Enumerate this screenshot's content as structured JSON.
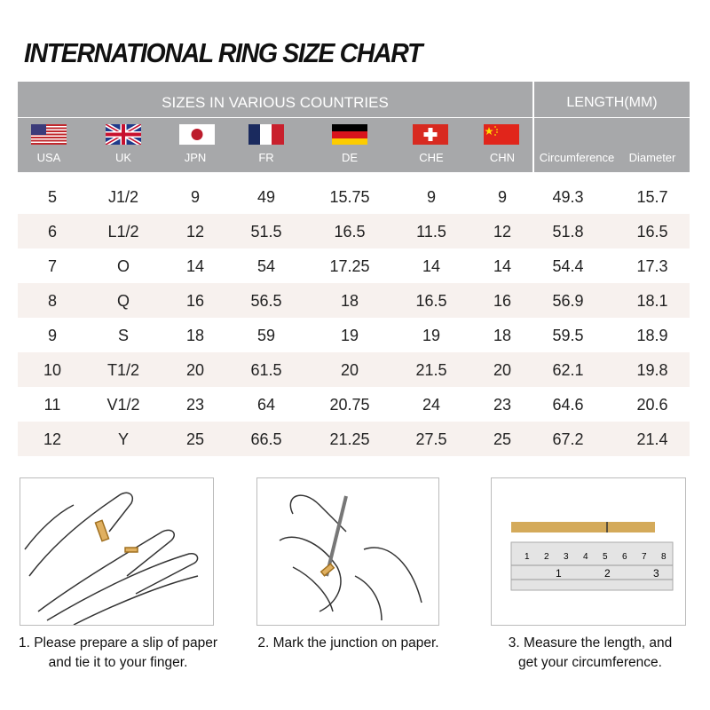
{
  "title": "INTERNATIONAL RING SIZE CHART",
  "header": {
    "sizes_label": "SIZES IN VARIOUS COUNTRIES",
    "length_label": "LENGTH(MM)",
    "countries": [
      {
        "code": "USA",
        "flag": "us-flag"
      },
      {
        "code": "UK",
        "flag": "uk-flag"
      },
      {
        "code": "JPN",
        "flag": "japan-flag"
      },
      {
        "code": "FR",
        "flag": "france-flag"
      },
      {
        "code": "DE",
        "flag": "germany-flag"
      },
      {
        "code": "CHE",
        "flag": "switzerland-flag"
      },
      {
        "code": "CHN",
        "flag": "china-flag"
      }
    ],
    "length_cols": [
      "Circumference",
      "Diameter"
    ]
  },
  "colors": {
    "header_bg": "#a7a8aa",
    "alt_row": "#f7f1ee"
  },
  "rows": [
    [
      "5",
      "J1/2",
      "9",
      "49",
      "15.75",
      "9",
      "9",
      "49.3",
      "15.7"
    ],
    [
      "6",
      "L1/2",
      "12",
      "51.5",
      "16.5",
      "11.5",
      "12",
      "51.8",
      "16.5"
    ],
    [
      "7",
      "O",
      "14",
      "54",
      "17.25",
      "14",
      "14",
      "54.4",
      "17.3"
    ],
    [
      "8",
      "Q",
      "16",
      "56.5",
      "18",
      "16.5",
      "16",
      "56.9",
      "18.1"
    ],
    [
      "9",
      "S",
      "18",
      "59",
      "19",
      "19",
      "18",
      "59.5",
      "18.9"
    ],
    [
      "10",
      "T1/2",
      "20",
      "61.5",
      "20",
      "21.5",
      "20",
      "62.1",
      "19.8"
    ],
    [
      "11",
      "V1/2",
      "23",
      "64",
      "20.75",
      "24",
      "23",
      "64.6",
      "20.6"
    ],
    [
      "12",
      "Y",
      "25",
      "66.5",
      "21.25",
      "27.5",
      "25",
      "67.2",
      "21.4"
    ]
  ],
  "steps": [
    {
      "line1": "1. Please prepare a slip of paper",
      "line2": "and tie it to your finger."
    },
    {
      "line1": "2. Mark the junction on paper.",
      "line2": ""
    },
    {
      "line1": "3. Measure the length, and",
      "line2": "get your circumference."
    }
  ],
  "ruler": {
    "cm_marks": [
      "1",
      "2",
      "3",
      "4",
      "5",
      "6",
      "7",
      "8"
    ],
    "inch_marks": [
      "1",
      "2",
      "3"
    ]
  }
}
